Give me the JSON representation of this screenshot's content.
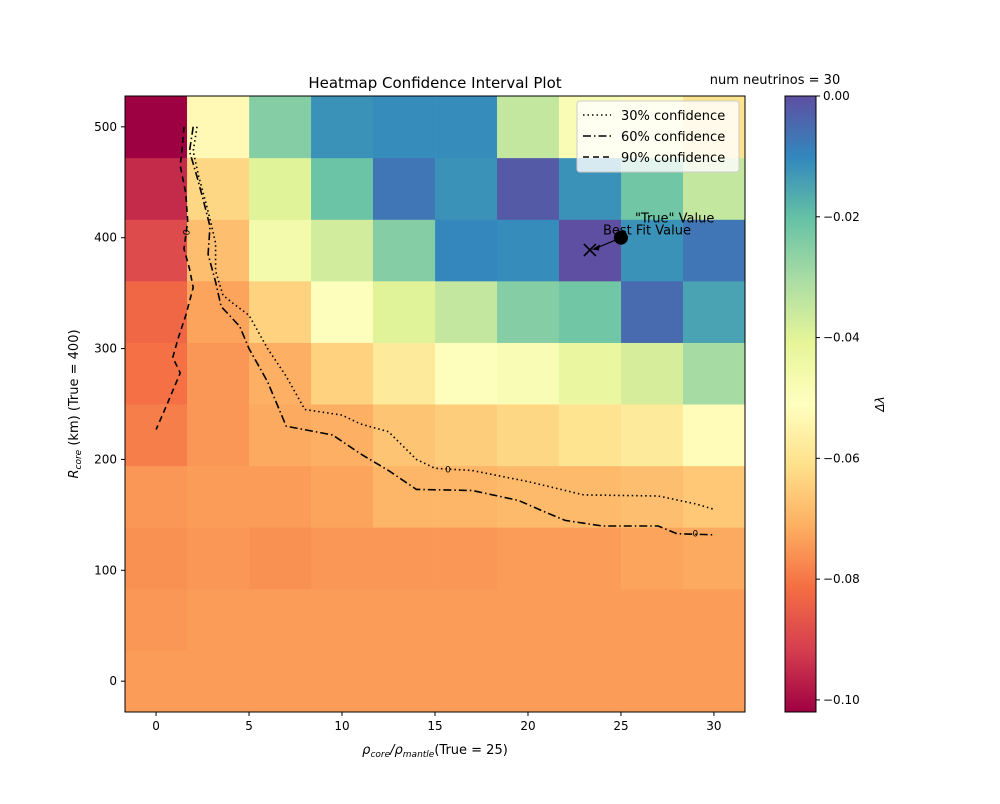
{
  "chart_data": {
    "type": "heatmap",
    "title": "Heatmap Confidence Interval Plot",
    "annotation_top_right": "num neutrinos = 30",
    "xlabel": {
      "main": "ρ",
      "sub1": "core",
      "sep": "/ρ",
      "sub2": "mantle",
      "tail": "(True = 25)"
    },
    "ylabel": {
      "main": "R",
      "sub": "core",
      "tail": " (km) (True = 400)"
    },
    "x_ticks": [
      0,
      5,
      10,
      15,
      20,
      25,
      30
    ],
    "y_ticks": [
      0,
      100,
      200,
      300,
      400,
      500
    ],
    "x_centers": [
      0,
      3.33,
      6.67,
      10,
      13.33,
      16.67,
      20,
      23.33,
      26.67,
      30
    ],
    "y_centers": [
      0,
      55.6,
      111.1,
      166.7,
      222.2,
      277.8,
      333.3,
      388.9,
      444.4,
      500
    ],
    "xlim": [
      -1.67,
      31.67
    ],
    "ylim": [
      -27.8,
      527.8
    ],
    "colorbar": {
      "label": "Δλ",
      "range": [
        -0.102,
        0.0
      ],
      "ticks": [
        0.0,
        -0.02,
        -0.04,
        -0.06,
        -0.08,
        -0.1
      ],
      "tick_labels": [
        "0.00",
        "−0.02",
        "−0.04",
        "−0.06",
        "−0.08",
        "−0.10"
      ]
    },
    "z": [
      [
        -0.074,
        -0.074,
        -0.074,
        -0.074,
        -0.074,
        -0.074,
        -0.074,
        -0.074,
        -0.074,
        -0.074
      ],
      [
        -0.075,
        -0.074,
        -0.074,
        -0.074,
        -0.074,
        -0.074,
        -0.074,
        -0.074,
        -0.074,
        -0.074
      ],
      [
        -0.076,
        -0.075,
        -0.076,
        -0.075,
        -0.075,
        -0.075,
        -0.074,
        -0.074,
        -0.073,
        -0.072
      ],
      [
        -0.075,
        -0.074,
        -0.074,
        -0.073,
        -0.07,
        -0.07,
        -0.069,
        -0.069,
        -0.068,
        -0.066
      ],
      [
        -0.079,
        -0.075,
        -0.072,
        -0.071,
        -0.067,
        -0.065,
        -0.063,
        -0.06,
        -0.058,
        -0.052
      ],
      [
        -0.081,
        -0.075,
        -0.071,
        -0.064,
        -0.058,
        -0.05,
        -0.048,
        -0.043,
        -0.038,
        -0.03
      ],
      [
        -0.083,
        -0.073,
        -0.064,
        -0.05,
        -0.04,
        -0.035,
        -0.025,
        -0.022,
        -0.005,
        -0.015
      ],
      [
        -0.089,
        -0.068,
        -0.046,
        -0.037,
        -0.025,
        -0.01,
        -0.011,
        0.0,
        -0.012,
        -0.007
      ],
      [
        -0.095,
        -0.063,
        -0.04,
        -0.021,
        -0.007,
        -0.012,
        -0.002,
        -0.012,
        -0.022,
        -0.035
      ],
      [
        -0.102,
        -0.053,
        -0.025,
        -0.012,
        -0.011,
        -0.011,
        -0.035,
        -0.048,
        -0.052,
        -0.06
      ]
    ],
    "legend": {
      "position": "top-right",
      "entries": [
        {
          "label": "30% confidence",
          "style": "dotted"
        },
        {
          "label": "60% confidence",
          "style": "dashdot"
        },
        {
          "label": "90% confidence",
          "style": "dashed"
        }
      ]
    },
    "contours": [
      {
        "name": "30% confidence",
        "style": "dotted",
        "points": [
          [
            2.2,
            500
          ],
          [
            2.0,
            478
          ],
          [
            2.3,
            455
          ],
          [
            2.7,
            430
          ],
          [
            3.0,
            410
          ],
          [
            3.2,
            395
          ],
          [
            3.2,
            370
          ],
          [
            3.6,
            348
          ],
          [
            4.2,
            340
          ],
          [
            5.0,
            330
          ],
          [
            6.0,
            300
          ],
          [
            7.0,
            275
          ],
          [
            8.0,
            245
          ],
          [
            10.0,
            240
          ],
          [
            11.0,
            232
          ],
          [
            12.5,
            225
          ],
          [
            14.0,
            200
          ],
          [
            15.0,
            192
          ],
          [
            17.0,
            190
          ],
          [
            20.0,
            180
          ],
          [
            23.0,
            168
          ],
          [
            27.0,
            167
          ],
          [
            29.0,
            160
          ],
          [
            30.0,
            155
          ]
        ],
        "label_text": "0",
        "label_at": [
          15.7,
          191
        ]
      },
      {
        "name": "60% confidence",
        "style": "dashdot",
        "points": [
          [
            2.0,
            500
          ],
          [
            1.8,
            478
          ],
          [
            2.2,
            455
          ],
          [
            2.6,
            430
          ],
          [
            2.9,
            410
          ],
          [
            2.8,
            385
          ],
          [
            3.2,
            360
          ],
          [
            3.5,
            338
          ],
          [
            4.5,
            320
          ],
          [
            5.0,
            300
          ],
          [
            6.0,
            270
          ],
          [
            7.0,
            230
          ],
          [
            9.5,
            222
          ],
          [
            11.0,
            205
          ],
          [
            12.5,
            190
          ],
          [
            14.0,
            173
          ],
          [
            17.0,
            172
          ],
          [
            19.5,
            163
          ],
          [
            21.0,
            152
          ],
          [
            22.0,
            145
          ],
          [
            24.0,
            140
          ],
          [
            27.0,
            140
          ],
          [
            28.0,
            133
          ],
          [
            30.0,
            132
          ]
        ],
        "label_text": "0",
        "label_at": [
          29.0,
          133
        ]
      },
      {
        "name": "90% confidence",
        "style": "dashed",
        "points": [
          [
            1.5,
            500
          ],
          [
            1.4,
            480
          ],
          [
            1.3,
            465
          ],
          [
            1.6,
            440
          ],
          [
            1.7,
            415
          ],
          [
            1.5,
            390
          ],
          [
            1.8,
            372
          ],
          [
            2.0,
            355
          ],
          [
            1.6,
            330
          ],
          [
            1.2,
            310
          ],
          [
            0.9,
            292
          ],
          [
            1.3,
            278
          ],
          [
            0.6,
            250
          ],
          [
            0.0,
            227
          ]
        ],
        "label_text": "0",
        "label_at": [
          1.8,
          407
        ]
      }
    ],
    "markers": [
      {
        "label": "\"True\" Value",
        "x": 25,
        "y": 400,
        "symbol": "filled-circle"
      },
      {
        "label": "Best Fit Value",
        "x": 23.33,
        "y": 388.9,
        "symbol": "x"
      }
    ],
    "grid": false
  }
}
